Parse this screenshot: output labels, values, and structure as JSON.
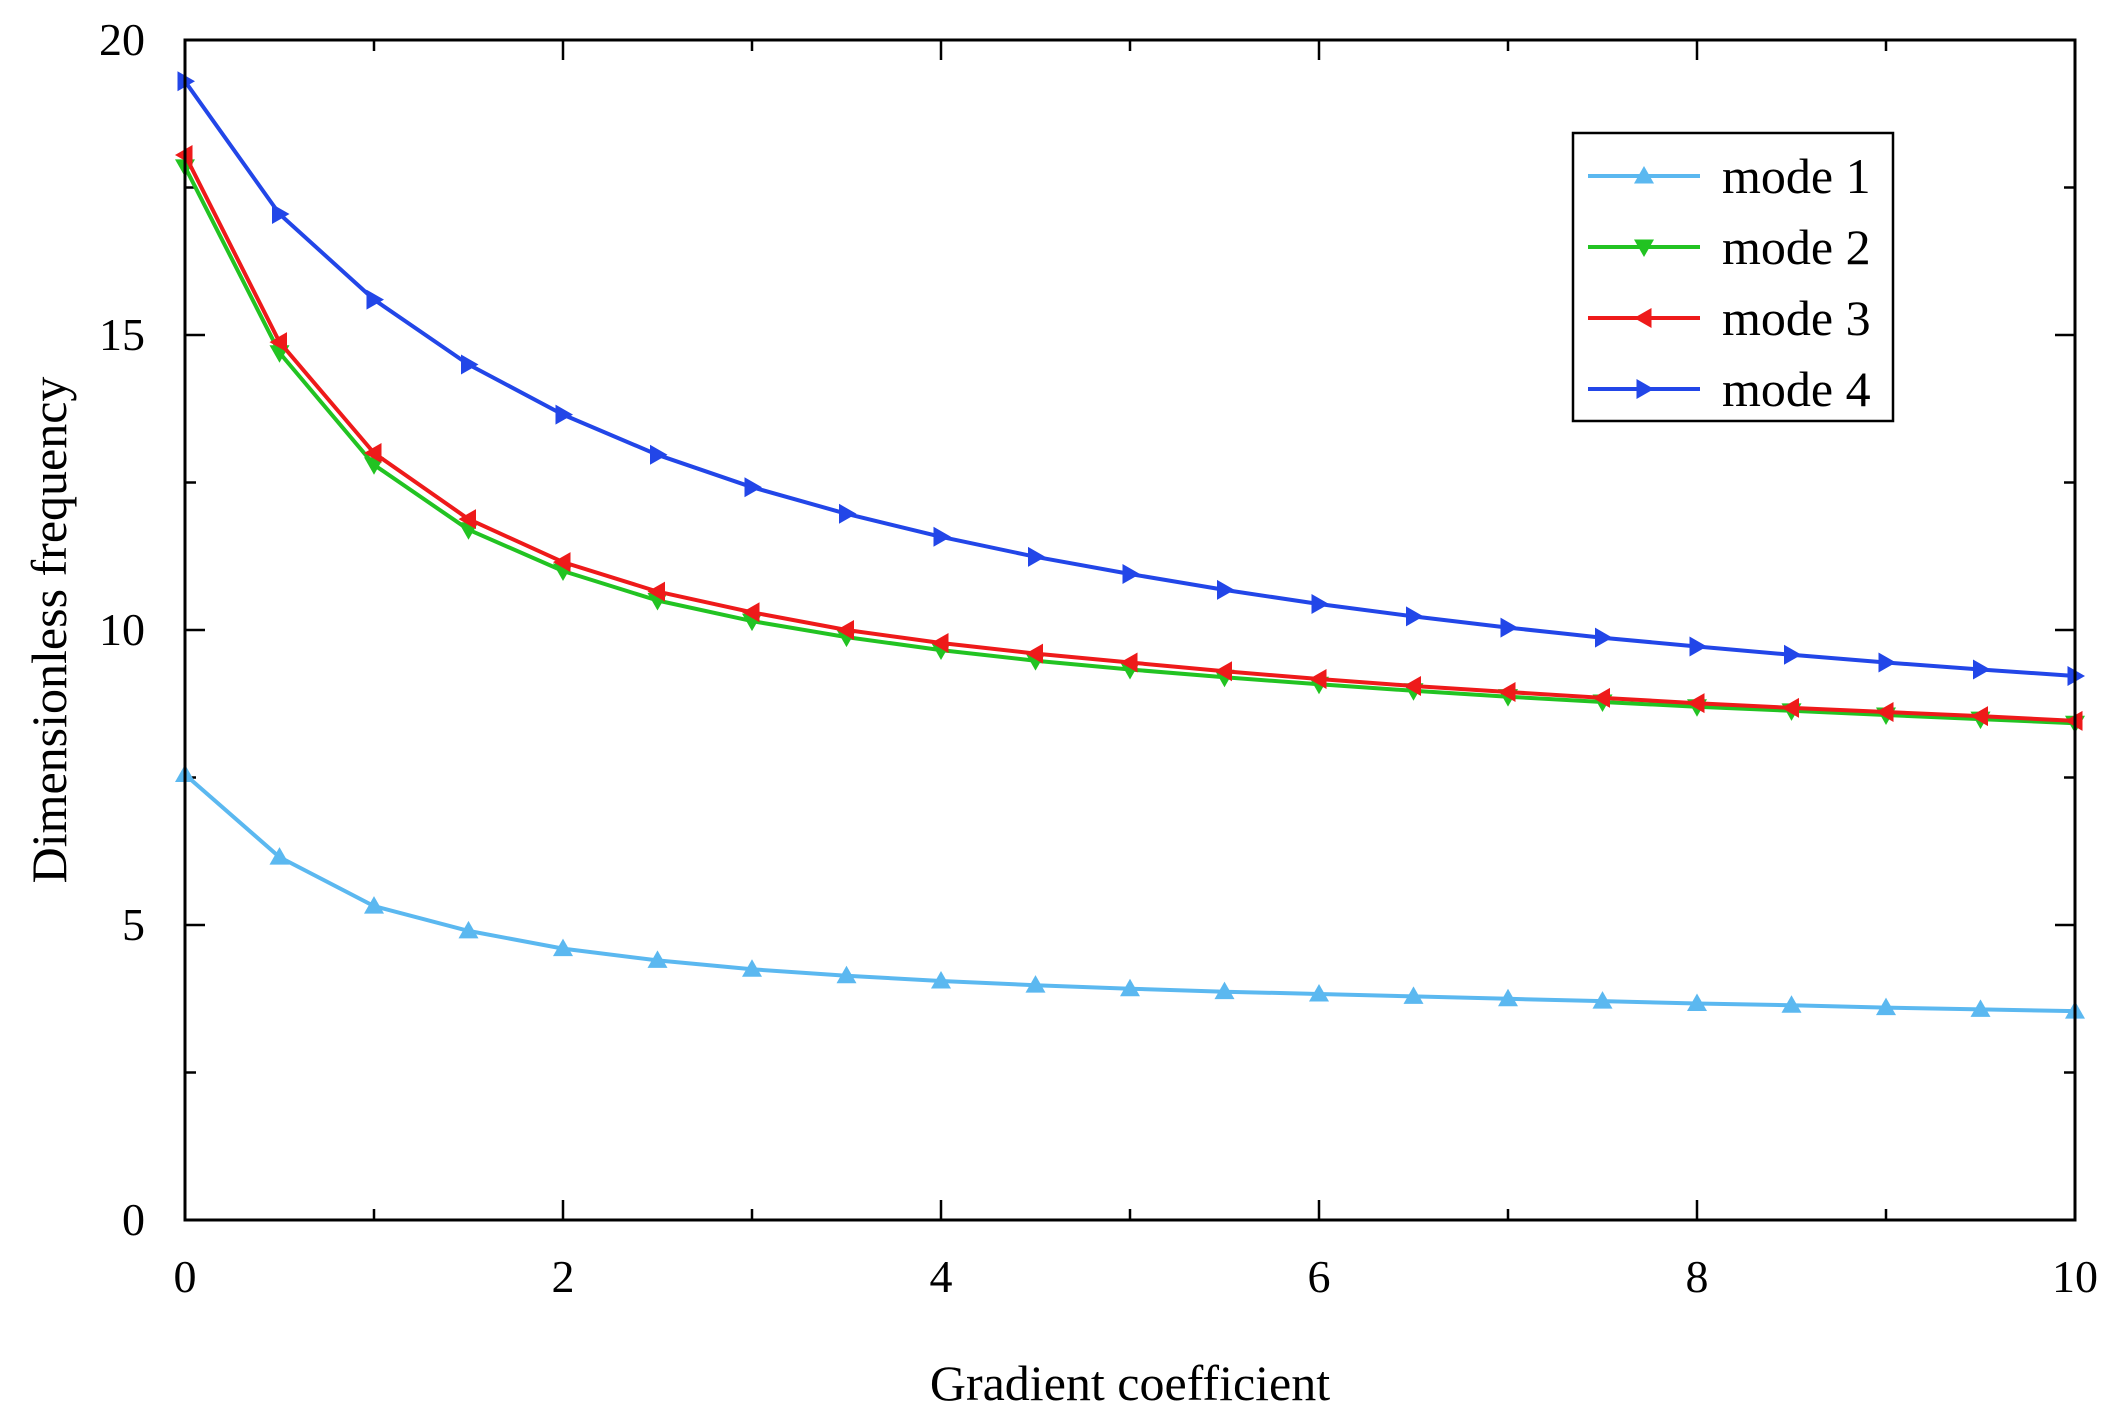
{
  "chart_data": {
    "type": "line",
    "xlabel": "Gradient coefficient",
    "ylabel": "Dimensionless frequency",
    "xlim": [
      0,
      10
    ],
    "ylim": [
      0,
      20
    ],
    "xticks": [
      0,
      2,
      4,
      6,
      8,
      10
    ],
    "yticks": [
      0,
      5,
      10,
      15,
      20
    ],
    "x_minor_step": 1,
    "y_minor_step": 2.5,
    "legend_position": "top-right",
    "x": [
      0,
      0.5,
      1,
      1.5,
      2,
      2.5,
      3,
      3.5,
      4,
      4.5,
      5,
      5.5,
      6,
      6.5,
      7,
      7.5,
      8,
      8.5,
      9,
      9.5,
      10
    ],
    "series": [
      {
        "name": "mode 1",
        "color": "#5BB8F0",
        "marker": "triangle-up",
        "values": [
          7.55,
          6.15,
          5.32,
          4.9,
          4.6,
          4.4,
          4.25,
          4.14,
          4.05,
          3.98,
          3.92,
          3.87,
          3.83,
          3.79,
          3.75,
          3.71,
          3.67,
          3.64,
          3.6,
          3.57,
          3.54
        ]
      },
      {
        "name": "mode 2",
        "color": "#22C322",
        "marker": "triangle-down",
        "values": [
          17.85,
          14.7,
          12.8,
          11.7,
          11.0,
          10.5,
          10.15,
          9.88,
          9.66,
          9.48,
          9.33,
          9.2,
          9.08,
          8.97,
          8.87,
          8.78,
          8.7,
          8.63,
          8.56,
          8.49,
          8.42
        ]
      },
      {
        "name": "mode 3",
        "color": "#EE1A1A",
        "marker": "triangle-left",
        "values": [
          18.05,
          14.88,
          13.0,
          11.88,
          11.15,
          10.65,
          10.3,
          10.0,
          9.78,
          9.6,
          9.45,
          9.3,
          9.17,
          9.05,
          8.95,
          8.85,
          8.76,
          8.68,
          8.61,
          8.54,
          8.46
        ]
      },
      {
        "name": "mode 4",
        "color": "#2246E8",
        "marker": "triangle-right",
        "values": [
          19.3,
          17.05,
          15.6,
          14.5,
          13.65,
          12.97,
          12.42,
          11.97,
          11.58,
          11.24,
          10.95,
          10.68,
          10.44,
          10.23,
          10.04,
          9.87,
          9.72,
          9.58,
          9.45,
          9.33,
          9.22
        ]
      }
    ]
  }
}
